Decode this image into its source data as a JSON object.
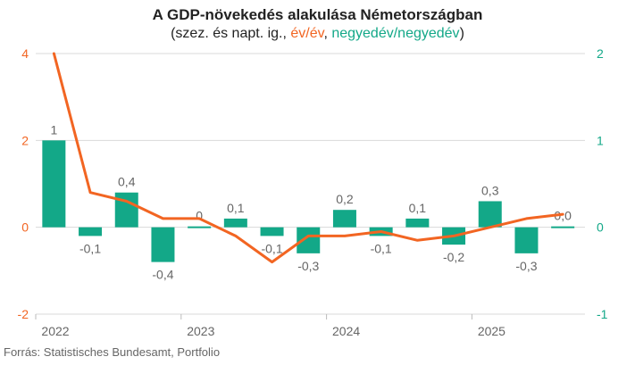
{
  "title": "A GDP-növekedés alakulása Németországban",
  "subtitle": {
    "prefix": "(szez. és napt. ig., ",
    "line_name": "év/év",
    "sep": ", ",
    "bar_name": "negyedév/negyedév",
    "suffix": ")"
  },
  "source": "Forrás: Statistisches Bundesamt, Portfolio",
  "colors": {
    "line": "#f26522",
    "bar": "#13a888",
    "text": "#222222",
    "axis_label": "#666666",
    "grid": "#d9d9d9"
  },
  "chart_data": {
    "type": "bar",
    "quarters": [
      "2022Q1",
      "2022Q2",
      "2022Q3",
      "2022Q4",
      "2023Q1",
      "2023Q2",
      "2023Q3",
      "2023Q4",
      "2024Q1",
      "2024Q2",
      "2024Q3",
      "2024Q4",
      "2025Q1",
      "2025Q2",
      "2025Q3"
    ],
    "year_ticks": [
      {
        "label": "2022",
        "index": 0
      },
      {
        "label": "2023",
        "index": 4
      },
      {
        "label": "2024",
        "index": 8
      },
      {
        "label": "2025",
        "index": 12
      }
    ],
    "left_axis": {
      "ylim": [
        -2,
        4
      ],
      "ticks": [
        "4",
        "2",
        "0",
        "-2"
      ],
      "tick_values": [
        4,
        2,
        0,
        -2
      ]
    },
    "right_axis": {
      "ylim": [
        -1,
        2
      ],
      "ticks": [
        "2",
        "1",
        "0",
        "-1"
      ],
      "tick_values": [
        2,
        1,
        0,
        -1
      ]
    },
    "series": [
      {
        "name": "negyedév/negyedév",
        "type": "bar",
        "axis": "right",
        "values": [
          1.0,
          -0.1,
          0.4,
          -0.4,
          0.0,
          0.1,
          -0.1,
          -0.3,
          0.2,
          -0.1,
          0.1,
          -0.2,
          0.3,
          -0.3,
          0.0
        ],
        "labels": [
          "1",
          "-0,1",
          "0,4",
          "-0,4",
          "0",
          "0,1",
          "-0,1",
          "-0,3",
          "0,2",
          "-0,1",
          "0,1",
          "-0,2",
          "0,3",
          "-0,3",
          "0,0"
        ]
      },
      {
        "name": "év/év",
        "type": "line",
        "axis": "left",
        "values": [
          4.0,
          0.8,
          0.6,
          0.2,
          0.2,
          -0.2,
          -0.8,
          -0.2,
          -0.2,
          -0.1,
          -0.3,
          -0.2,
          0.0,
          0.2,
          0.3
        ]
      }
    ]
  }
}
